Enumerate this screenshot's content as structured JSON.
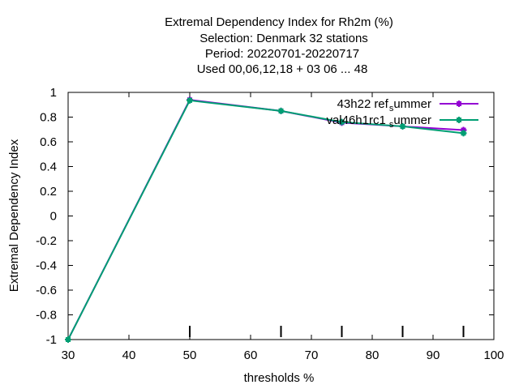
{
  "chart_data": {
    "type": "line",
    "title_lines": [
      "Extremal Dependency Index  for Rh2m (%)",
      "Selection: Denmark     32 stations",
      "Period: 20220701-20220717",
      "Used  00,06,12,18  + 03 06 ... 48"
    ],
    "xlabel": "thresholds %",
    "ylabel": "Extremal Dependency Index",
    "xlim": [
      30,
      100
    ],
    "ylim": [
      -1,
      1
    ],
    "xticks": [
      "30",
      "40",
      "50",
      "60",
      "70",
      "80",
      "90",
      "100"
    ],
    "yticks": [
      "1",
      "0.8",
      "0.6",
      "0.4",
      "0.2",
      "0",
      "-0.2",
      "-0.4",
      "-0.6",
      "-0.8",
      "-1"
    ],
    "threshold_marks": [
      50,
      65,
      75,
      85,
      95
    ],
    "grid": false,
    "legend_position": "top-right",
    "x": [
      30,
      50,
      65,
      75,
      85,
      95
    ],
    "series": [
      {
        "name": "43h22 ref summer",
        "name_parts": [
          "43h22",
          "ref",
          "s",
          "ummer"
        ],
        "color": "#9400d3",
        "values": [
          -1.0,
          0.94,
          0.85,
          0.755,
          0.725,
          0.695
        ]
      },
      {
        "name": "val46h1rc1 summer",
        "name_parts": [
          "val46h1rc1",
          "",
          "s",
          "ummer"
        ],
        "color": "#009e73",
        "values": [
          -1.0,
          0.935,
          0.85,
          0.76,
          0.725,
          0.67
        ]
      }
    ]
  }
}
